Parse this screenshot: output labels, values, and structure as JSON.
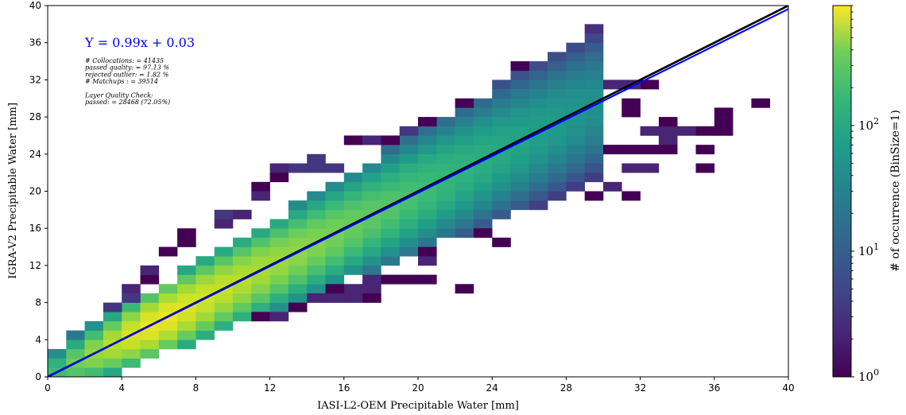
{
  "chart_data": {
    "type": "heatmap",
    "title": "",
    "xlabel": "IASI-L2-OEM Precipitable Water [mm]",
    "ylabel": "IGRA-V2 Precipitable Water [mm]",
    "xlim": [
      0,
      40
    ],
    "ylim": [
      0,
      40
    ],
    "xticks": [
      "0",
      "4",
      "8",
      "12",
      "16",
      "20",
      "24",
      "28",
      "32",
      "36",
      "40"
    ],
    "yticks": [
      "0",
      "4",
      "8",
      "12",
      "16",
      "20",
      "24",
      "28",
      "32",
      "36",
      "40"
    ],
    "bin_size": 1,
    "fit_equation": "Y = 0.99x + 0.03",
    "fit_line": {
      "slope": 0.99,
      "intercept": 0.03,
      "color": "#0000ff"
    },
    "one_to_one_line": {
      "slope": 1,
      "intercept": 0,
      "color": "#000000"
    },
    "stats": [
      "# Collocations: = 41435",
      "passed quality: = 97.13 %",
      "rejected outlier: = 1.82 %",
      "# Matchups   : = 39514",
      "",
      "Layer Quality Check:",
      "passed: = 28468 (72.05%)"
    ],
    "colorbar": {
      "label": "# of occurrence (BinSize=1)",
      "scale": "log",
      "range": [
        1,
        900
      ],
      "colormap": "viridis",
      "ticks": [
        {
          "base": "10",
          "exp": "0",
          "value": 1
        },
        {
          "base": "10",
          "exp": "1",
          "value": 10
        },
        {
          "base": "10",
          "exp": "2",
          "value": 100
        }
      ]
    },
    "density_model": {
      "peak_x": 6,
      "peak_value": 800,
      "decay_per_mm": 0.14,
      "ridge_width_base": 1.2,
      "ridge_width_growth": 0.085
    },
    "sparse_bins": [
      {
        "x": 2,
        "y": 0,
        "count": 1
      },
      {
        "x": 25,
        "y": 33,
        "count": 1
      },
      {
        "x": 38,
        "y": 29,
        "count": 1
      },
      {
        "x": 36,
        "y": 28,
        "count": 1
      },
      {
        "x": 36,
        "y": 27,
        "count": 1
      },
      {
        "x": 35,
        "y": 26,
        "count": 1
      },
      {
        "x": 36,
        "y": 26,
        "count": 1
      },
      {
        "x": 34,
        "y": 26,
        "count": 2
      },
      {
        "x": 33,
        "y": 26,
        "count": 2
      },
      {
        "x": 32,
        "y": 26,
        "count": 2
      },
      {
        "x": 33,
        "y": 25,
        "count": 2
      },
      {
        "x": 33,
        "y": 27,
        "count": 1
      },
      {
        "x": 35,
        "y": 24,
        "count": 1
      },
      {
        "x": 35,
        "y": 22,
        "count": 1
      },
      {
        "x": 33,
        "y": 24,
        "count": 1
      },
      {
        "x": 32,
        "y": 24,
        "count": 1
      },
      {
        "x": 31,
        "y": 24,
        "count": 1
      },
      {
        "x": 30,
        "y": 24,
        "count": 1
      },
      {
        "x": 31,
        "y": 28,
        "count": 1
      },
      {
        "x": 31,
        "y": 29,
        "count": 1
      },
      {
        "x": 32,
        "y": 31,
        "count": 1
      },
      {
        "x": 31,
        "y": 31,
        "count": 2
      },
      {
        "x": 30,
        "y": 31,
        "count": 2
      },
      {
        "x": 29,
        "y": 31,
        "count": 2
      },
      {
        "x": 28,
        "y": 31,
        "count": 2
      },
      {
        "x": 27,
        "y": 31,
        "count": 2
      },
      {
        "x": 22,
        "y": 29,
        "count": 1
      },
      {
        "x": 20,
        "y": 27,
        "count": 1
      },
      {
        "x": 16,
        "y": 25,
        "count": 1
      },
      {
        "x": 17,
        "y": 25,
        "count": 2
      },
      {
        "x": 18,
        "y": 25,
        "count": 1
      },
      {
        "x": 12,
        "y": 22,
        "count": 2
      },
      {
        "x": 12,
        "y": 21,
        "count": 1
      },
      {
        "x": 11,
        "y": 20,
        "count": 1
      },
      {
        "x": 11,
        "y": 19,
        "count": 2
      },
      {
        "x": 28,
        "y": 23,
        "count": 2
      },
      {
        "x": 29,
        "y": 23,
        "count": 2
      },
      {
        "x": 31,
        "y": 22,
        "count": 2
      },
      {
        "x": 32,
        "y": 22,
        "count": 2
      },
      {
        "x": 29,
        "y": 21,
        "count": 1
      },
      {
        "x": 28,
        "y": 21,
        "count": 1
      },
      {
        "x": 27,
        "y": 21,
        "count": 1
      },
      {
        "x": 30,
        "y": 20,
        "count": 2
      },
      {
        "x": 29,
        "y": 19,
        "count": 1
      },
      {
        "x": 31,
        "y": 19,
        "count": 1
      },
      {
        "x": 25,
        "y": 19,
        "count": 1
      },
      {
        "x": 25,
        "y": 20,
        "count": 1
      },
      {
        "x": 26,
        "y": 18,
        "count": 1
      },
      {
        "x": 26,
        "y": 19,
        "count": 2
      },
      {
        "x": 23,
        "y": 18,
        "count": 3
      },
      {
        "x": 24,
        "y": 18,
        "count": 2
      },
      {
        "x": 25,
        "y": 18,
        "count": 2
      },
      {
        "x": 23,
        "y": 19,
        "count": 3
      },
      {
        "x": 24,
        "y": 19,
        "count": 3
      },
      {
        "x": 21,
        "y": 17,
        "count": 3
      },
      {
        "x": 22,
        "y": 17,
        "count": 2
      },
      {
        "x": 22,
        "y": 16,
        "count": 2
      },
      {
        "x": 23,
        "y": 16,
        "count": 1
      },
      {
        "x": 21,
        "y": 15,
        "count": 1
      },
      {
        "x": 22,
        "y": 15,
        "count": 1
      },
      {
        "x": 23,
        "y": 15,
        "count": 1
      },
      {
        "x": 24,
        "y": 14,
        "count": 1
      },
      {
        "x": 19,
        "y": 14,
        "count": 1
      },
      {
        "x": 18,
        "y": 14,
        "count": 2
      },
      {
        "x": 20,
        "y": 13,
        "count": 1
      },
      {
        "x": 19,
        "y": 13,
        "count": 2
      },
      {
        "x": 20,
        "y": 12,
        "count": 2
      },
      {
        "x": 19,
        "y": 10,
        "count": 1
      },
      {
        "x": 20,
        "y": 10,
        "count": 1
      },
      {
        "x": 18,
        "y": 10,
        "count": 1
      },
      {
        "x": 17,
        "y": 10,
        "count": 2
      },
      {
        "x": 22,
        "y": 9,
        "count": 1
      },
      {
        "x": 16,
        "y": 9,
        "count": 2
      },
      {
        "x": 17,
        "y": 9,
        "count": 2
      },
      {
        "x": 15,
        "y": 9,
        "count": 1
      },
      {
        "x": 16,
        "y": 8,
        "count": 2
      },
      {
        "x": 17,
        "y": 8,
        "count": 1
      },
      {
        "x": 15,
        "y": 8,
        "count": 2
      },
      {
        "x": 14,
        "y": 8,
        "count": 2
      },
      {
        "x": 13,
        "y": 7,
        "count": 1
      },
      {
        "x": 11,
        "y": 6,
        "count": 1
      },
      {
        "x": 12,
        "y": 6,
        "count": 2
      },
      {
        "x": 7,
        "y": 15,
        "count": 1
      },
      {
        "x": 7,
        "y": 14,
        "count": 1
      },
      {
        "x": 6,
        "y": 13,
        "count": 1
      },
      {
        "x": 5,
        "y": 10,
        "count": 1
      },
      {
        "x": 5,
        "y": 11,
        "count": 2
      },
      {
        "x": 4,
        "y": 9,
        "count": 2
      },
      {
        "x": 4,
        "y": 8,
        "count": 3
      },
      {
        "x": 3,
        "y": 7,
        "count": 3
      },
      {
        "x": 3,
        "y": 6,
        "count": 4
      },
      {
        "x": 2,
        "y": 5,
        "count": 3
      },
      {
        "x": 9,
        "y": 16,
        "count": 2
      },
      {
        "x": 9,
        "y": 17,
        "count": 3
      },
      {
        "x": 10,
        "y": 17,
        "count": 2
      },
      {
        "x": 13,
        "y": 22,
        "count": 3
      },
      {
        "x": 14,
        "y": 22,
        "count": 3
      },
      {
        "x": 15,
        "y": 22,
        "count": 3
      },
      {
        "x": 14,
        "y": 23,
        "count": 3
      },
      {
        "x": 19,
        "y": 26,
        "count": 3
      },
      {
        "x": 21,
        "y": 26,
        "count": 3
      },
      {
        "x": 23,
        "y": 27,
        "count": 3
      },
      {
        "x": 24,
        "y": 28,
        "count": 3
      },
      {
        "x": 26,
        "y": 29,
        "count": 3
      },
      {
        "x": 27,
        "y": 30,
        "count": 3
      },
      {
        "x": 28,
        "y": 30,
        "count": 3
      },
      {
        "x": 29,
        "y": 30,
        "count": 3
      }
    ]
  }
}
